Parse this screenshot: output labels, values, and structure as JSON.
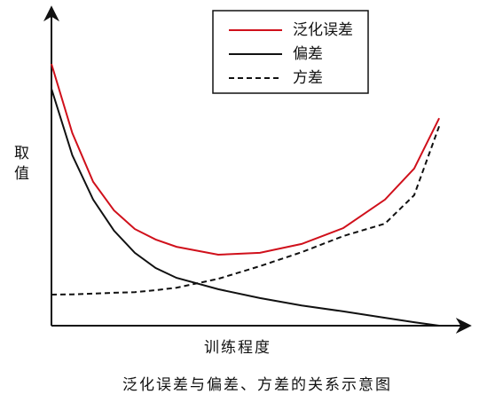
{
  "chart_data": {
    "type": "line",
    "caption": "泛化误差与偏差、方差的关系示意图",
    "x_label": "训练程度",
    "y_label": "取值",
    "x": [
      0,
      5,
      10,
      15,
      20,
      25,
      30,
      40,
      50,
      60,
      70,
      80,
      87,
      93
    ],
    "xlim": [
      0,
      100
    ],
    "ylim": [
      0,
      100
    ],
    "series": [
      {
        "name": "泛化误差",
        "color": "#d0101b",
        "dash": false,
        "values": [
          82.6,
          60.8,
          45.4,
          36.4,
          30.5,
          27.2,
          24.9,
          22.4,
          23.0,
          25.8,
          30.8,
          39.8,
          49.6,
          65.5
        ]
      },
      {
        "name": "偏差",
        "color": "#111111",
        "dash": false,
        "values": [
          74.8,
          53.8,
          39.8,
          30.0,
          23.0,
          18.2,
          15.1,
          11.5,
          8.7,
          6.4,
          4.5,
          2.5,
          1.1,
          0
        ]
      },
      {
        "name": "方差",
        "color": "#111111",
        "dash": true,
        "values": [
          9.8,
          9.9,
          10.1,
          10.4,
          10.6,
          11.2,
          12.0,
          14.8,
          18.8,
          23.2,
          28.3,
          32.2,
          41.2,
          63.0
        ]
      }
    ]
  }
}
